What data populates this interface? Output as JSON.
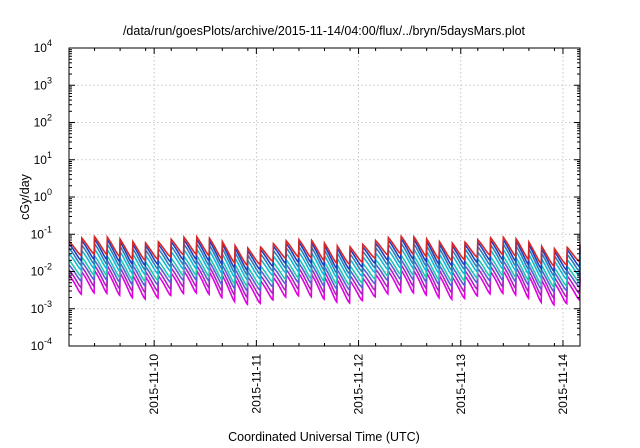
{
  "chart_data": {
    "type": "line",
    "title": "/data/run/goesPlots/archive/2015-11-14/04:00/flux/../bryn/5daysMars.plot",
    "xlabel": "Coordinated Universal Time (UTC)",
    "ylabel": "cGy/day",
    "yscale": "log",
    "ylim": [
      0.0001,
      10000
    ],
    "y_ticks": [
      {
        "base": "10",
        "exp": "-4"
      },
      {
        "base": "10",
        "exp": "-3"
      },
      {
        "base": "10",
        "exp": "-2"
      },
      {
        "base": "10",
        "exp": "-1"
      },
      {
        "base": "10",
        "exp": "0"
      },
      {
        "base": "10",
        "exp": "1"
      },
      {
        "base": "10",
        "exp": "2"
      },
      {
        "base": "10",
        "exp": "3"
      },
      {
        "base": "10",
        "exp": "4"
      }
    ],
    "xlim": [
      "2015-11-09T04:00",
      "2015-11-14T04:00"
    ],
    "x_ticks": [
      "2015-11-10",
      "2015-11-11",
      "2015-11-12",
      "2015-11-13",
      "2015-11-14"
    ],
    "grid": true,
    "sawtooth_period_hours": 3,
    "series": [
      {
        "color": "#d62728",
        "high": 0.065,
        "low": 0.022
      },
      {
        "color": "#1f3fbf",
        "high": 0.055,
        "low": 0.016
      },
      {
        "color": "#2a7fb8",
        "high": 0.042,
        "low": 0.012
      },
      {
        "color": "#12b7d6",
        "high": 0.03,
        "low": 0.009
      },
      {
        "color": "#22c7b0",
        "high": 0.02,
        "low": 0.006
      },
      {
        "color": "#5b5bd6",
        "high": 0.015,
        "low": 0.0045
      },
      {
        "color": "#b020c0",
        "high": 0.011,
        "low": 0.003
      },
      {
        "color": "#e000e0",
        "high": 0.008,
        "low": 0.002
      }
    ]
  }
}
